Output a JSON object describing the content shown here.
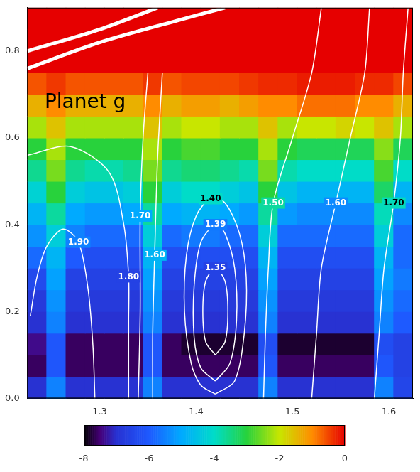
{
  "chart_data": {
    "type": "heatmap",
    "xlim": [
      1.225,
      1.625
    ],
    "xticks": [
      1.3,
      1.4,
      1.5,
      1.6
    ],
    "ylim": [
      0,
      0.9
    ],
    "yticks": [
      {
        "value": 0,
        "label": "0.0"
      },
      0.2,
      0.4,
      0.6,
      0.8
    ],
    "grid": false,
    "x_edges": [
      1.225,
      1.245,
      1.265,
      1.285,
      1.305,
      1.325,
      1.345,
      1.365,
      1.385,
      1.405,
      1.425,
      1.445,
      1.465,
      1.485,
      1.505,
      1.525,
      1.545,
      1.565,
      1.585,
      1.605,
      1.625
    ],
    "y_edges": [
      0,
      0.05,
      0.1,
      0.15,
      0.2,
      0.25,
      0.3,
      0.35,
      0.4,
      0.45,
      0.5,
      0.55,
      0.6,
      0.65,
      0.7,
      0.75,
      0.8,
      0.85,
      0.9
    ],
    "cells": [
      [
        -7.0,
        -5.5,
        -7.0,
        -7.0,
        -7.0,
        -7.0,
        -5.5,
        -7.0,
        -7.0,
        -7.0,
        -7.0,
        -7.0,
        -5.5,
        -7.0,
        -7.0,
        -7.0,
        -7.0,
        -7.0,
        -5.5,
        -6.5
      ],
      [
        -7.6,
        -6.1,
        -7.6,
        -7.6,
        -7.6,
        -7.6,
        -6.1,
        -7.6,
        -7.6,
        -7.6,
        -7.6,
        -7.6,
        -6.1,
        -7.6,
        -7.6,
        -7.6,
        -7.6,
        -7.6,
        -6.1,
        -6.6
      ],
      [
        -7.4,
        -6.1,
        -7.6,
        -7.6,
        -7.6,
        -7.6,
        -6.1,
        -7.6,
        -7.8,
        -7.8,
        -7.8,
        -7.8,
        -6.3,
        -7.8,
        -7.8,
        -7.8,
        -7.8,
        -7.8,
        -6.3,
        -6.6
      ],
      [
        -7.0,
        -5.5,
        -7.0,
        -7.0,
        -7.0,
        -7.0,
        -5.5,
        -7.0,
        -7.0,
        -7.0,
        -7.0,
        -7.0,
        -5.5,
        -7.0,
        -7.0,
        -7.0,
        -7.0,
        -7.0,
        -5.5,
        -6.0
      ],
      [
        -6.8,
        -5.3,
        -6.8,
        -6.8,
        -6.8,
        -6.8,
        -5.3,
        -6.8,
        -6.8,
        -6.8,
        -6.8,
        -6.8,
        -5.3,
        -6.8,
        -6.8,
        -6.8,
        -6.8,
        -6.8,
        -5.3,
        -5.8
      ],
      [
        -6.4,
        -5.1,
        -6.6,
        -6.6,
        -6.6,
        -6.6,
        -5.1,
        -6.6,
        -6.6,
        -6.6,
        -6.6,
        -6.6,
        -5.1,
        -6.6,
        -6.6,
        -6.6,
        -6.6,
        -6.6,
        -5.1,
        -5.6
      ],
      [
        -5.8,
        -4.8,
        -6.0,
        -6.3,
        -6.3,
        -6.3,
        -4.8,
        -6.3,
        -6.3,
        -6.3,
        -6.3,
        -6.3,
        -4.8,
        -6.3,
        -6.3,
        -6.3,
        -6.3,
        -6.3,
        -4.8,
        -5.8
      ],
      [
        -5.3,
        -4.3,
        -5.5,
        -5.8,
        -5.8,
        -5.8,
        -4.3,
        -5.8,
        -5.6,
        -5.6,
        -5.8,
        -5.8,
        -4.3,
        -5.8,
        -5.8,
        -5.8,
        -5.8,
        -5.8,
        -4.3,
        -5.8
      ],
      [
        -4.8,
        -3.7,
        -5.0,
        -5.2,
        -5.2,
        -5.0,
        -3.7,
        -5.0,
        -4.8,
        -4.8,
        -5.0,
        -5.2,
        -3.7,
        -5.2,
        -5.4,
        -5.4,
        -5.4,
        -5.4,
        -3.9,
        -5.4
      ],
      [
        -4.2,
        -3.0,
        -4.3,
        -4.5,
        -4.5,
        -4.3,
        -3.0,
        -4.3,
        -4.0,
        -4.0,
        -4.3,
        -4.5,
        -3.0,
        -4.5,
        -4.8,
        -4.8,
        -4.8,
        -4.8,
        -3.3,
        -4.8
      ],
      [
        -3.6,
        -2.5,
        -3.6,
        -3.8,
        -3.8,
        -3.6,
        -2.5,
        -3.6,
        -3.4,
        -3.4,
        -3.6,
        -3.8,
        -2.5,
        -3.8,
        -4.0,
        -4.0,
        -4.0,
        -4.0,
        -2.8,
        -4.0
      ],
      [
        -3.0,
        -2.2,
        -3.0,
        -3.0,
        -3.0,
        -3.0,
        -2.2,
        -3.0,
        -2.8,
        -2.8,
        -3.0,
        -3.0,
        -2.2,
        -3.0,
        -3.2,
        -3.2,
        -3.2,
        -3.2,
        -2.4,
        -3.2
      ],
      [
        -2.2,
        -1.6,
        -2.2,
        -2.2,
        -2.2,
        -2.2,
        -1.6,
        -2.2,
        -2.0,
        -2.0,
        -2.2,
        -2.2,
        -1.6,
        -2.2,
        -2.0,
        -2.0,
        -1.8,
        -2.0,
        -1.6,
        -2.2
      ],
      [
        -1.4,
        -1.0,
        -1.4,
        -1.4,
        -1.4,
        -1.4,
        -1.0,
        -1.4,
        -1.2,
        -1.2,
        -1.4,
        -1.2,
        -1.0,
        -1.0,
        -0.8,
        -0.8,
        -0.8,
        -1.0,
        -1.0,
        -1.4
      ],
      [
        -0.6,
        -0.4,
        -0.6,
        -0.6,
        -0.6,
        -0.6,
        -0.4,
        -0.6,
        -0.5,
        -0.5,
        -0.5,
        -0.4,
        -0.3,
        -0.3,
        -0.2,
        -0.2,
        -0.2,
        -0.3,
        -0.3,
        -0.5
      ],
      [
        0,
        0,
        0,
        0,
        0,
        0,
        0,
        0,
        0,
        0,
        0,
        0,
        0,
        0,
        0,
        0,
        0,
        0,
        0,
        0
      ],
      [
        0,
        0,
        0,
        0,
        0,
        0,
        0,
        0,
        0,
        0,
        0,
        0,
        0,
        0,
        0,
        0,
        0,
        0,
        0,
        0
      ],
      [
        0,
        0,
        0,
        0,
        0,
        0,
        0,
        0,
        0,
        0,
        0,
        0,
        0,
        0,
        0,
        0,
        0,
        0,
        0,
        0
      ]
    ],
    "colorbar": {
      "range": [
        -8,
        0
      ],
      "ticks": [
        -8,
        -6,
        -4,
        -2,
        0
      ]
    },
    "contours": [
      {
        "level": 1.9,
        "label": "1.90",
        "points": [
          [
            1.228,
            0.19
          ],
          [
            1.235,
            0.28
          ],
          [
            1.245,
            0.35
          ],
          [
            1.262,
            0.39
          ],
          [
            1.278,
            0.36
          ],
          [
            1.288,
            0.25
          ],
          [
            1.293,
            0.12
          ],
          [
            1.295,
            0.0
          ]
        ]
      },
      {
        "level": 1.8,
        "label": "1.80",
        "points": [
          [
            1.225,
            0.56
          ],
          [
            1.27,
            0.58
          ],
          [
            1.31,
            0.52
          ],
          [
            1.325,
            0.4
          ],
          [
            1.33,
            0.28
          ],
          [
            1.33,
            0.18
          ],
          [
            1.33,
            0.08
          ],
          [
            1.33,
            0.0
          ]
        ]
      },
      {
        "level": 1.7,
        "label": "1.70",
        "points": [
          [
            1.34,
            0.0
          ],
          [
            1.342,
            0.2
          ],
          [
            1.342,
            0.42
          ],
          [
            1.345,
            0.6
          ],
          [
            1.35,
            0.75
          ]
        ]
      },
      {
        "level": 1.6,
        "label": "1.60",
        "points": [
          [
            1.355,
            0.0
          ],
          [
            1.355,
            0.15
          ],
          [
            1.357,
            0.33
          ],
          [
            1.36,
            0.55
          ],
          [
            1.365,
            0.75
          ]
        ]
      },
      {
        "level": 1.4,
        "label": "1.40",
        "points": [
          [
            1.42,
            0.01
          ],
          [
            1.44,
            0.04
          ],
          [
            1.45,
            0.15
          ],
          [
            1.452,
            0.28
          ],
          [
            1.445,
            0.38
          ],
          [
            1.43,
            0.45
          ],
          [
            1.415,
            0.46
          ],
          [
            1.4,
            0.42
          ],
          [
            1.39,
            0.33
          ],
          [
            1.388,
            0.2
          ],
          [
            1.395,
            0.08
          ],
          [
            1.405,
            0.03
          ],
          [
            1.42,
            0.01
          ]
        ]
      },
      {
        "level": 1.39,
        "label": "1.39",
        "points": [
          [
            1.42,
            0.04
          ],
          [
            1.435,
            0.08
          ],
          [
            1.442,
            0.18
          ],
          [
            1.44,
            0.3
          ],
          [
            1.43,
            0.38
          ],
          [
            1.42,
            0.4
          ],
          [
            1.405,
            0.36
          ],
          [
            1.398,
            0.26
          ],
          [
            1.398,
            0.14
          ],
          [
            1.405,
            0.07
          ],
          [
            1.42,
            0.04
          ]
        ]
      },
      {
        "level": 1.35,
        "label": "1.35",
        "points": [
          [
            1.42,
            0.1
          ],
          [
            1.43,
            0.13
          ],
          [
            1.433,
            0.2
          ],
          [
            1.43,
            0.27
          ],
          [
            1.42,
            0.3
          ],
          [
            1.41,
            0.27
          ],
          [
            1.407,
            0.2
          ],
          [
            1.41,
            0.13
          ],
          [
            1.42,
            0.1
          ]
        ]
      },
      {
        "level": 1.5,
        "label": "1.50",
        "points": [
          [
            1.47,
            0.0
          ],
          [
            1.472,
            0.15
          ],
          [
            1.475,
            0.3
          ],
          [
            1.48,
            0.45
          ],
          [
            1.5,
            0.6
          ],
          [
            1.52,
            0.75
          ],
          [
            1.53,
            0.9
          ]
        ]
      },
      {
        "level": 1.6,
        "label": "1.60",
        "points": [
          [
            1.52,
            0.0
          ],
          [
            1.525,
            0.15
          ],
          [
            1.53,
            0.3
          ],
          [
            1.545,
            0.45
          ],
          [
            1.56,
            0.6
          ],
          [
            1.575,
            0.75
          ],
          [
            1.58,
            0.9
          ]
        ]
      },
      {
        "level": 1.7,
        "label": "1.70",
        "points": [
          [
            1.585,
            0.0
          ],
          [
            1.59,
            0.15
          ],
          [
            1.595,
            0.3
          ],
          [
            1.605,
            0.45
          ],
          [
            1.612,
            0.6
          ],
          [
            1.615,
            0.75
          ],
          [
            1.62,
            0.9
          ]
        ]
      },
      {
        "points": [
          [
            1.225,
            0.76
          ],
          [
            1.3,
            0.82
          ],
          [
            1.38,
            0.87
          ],
          [
            1.43,
            0.9
          ]
        ]
      },
      {
        "points": [
          [
            1.225,
            0.8
          ],
          [
            1.3,
            0.85
          ],
          [
            1.36,
            0.9
          ]
        ]
      }
    ],
    "annotations": [
      {
        "text": "Planet g",
        "x": 1.285,
        "y": 0.68
      }
    ]
  }
}
